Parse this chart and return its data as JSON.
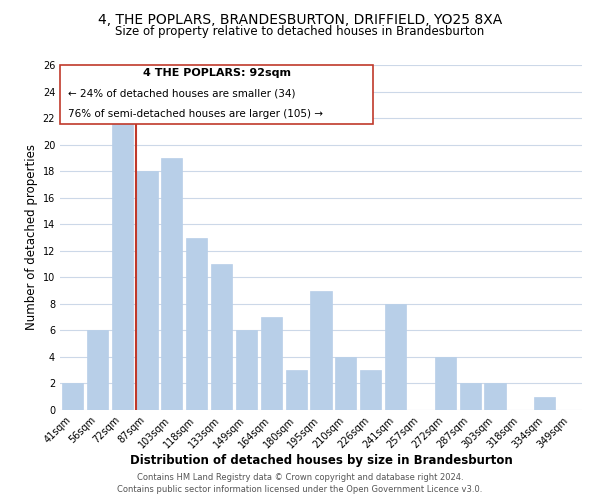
{
  "title": "4, THE POPLARS, BRANDESBURTON, DRIFFIELD, YO25 8XA",
  "subtitle": "Size of property relative to detached houses in Brandesburton",
  "xlabel": "Distribution of detached houses by size in Brandesburton",
  "ylabel": "Number of detached properties",
  "bin_labels": [
    "41sqm",
    "56sqm",
    "72sqm",
    "87sqm",
    "103sqm",
    "118sqm",
    "133sqm",
    "149sqm",
    "164sqm",
    "180sqm",
    "195sqm",
    "210sqm",
    "226sqm",
    "241sqm",
    "257sqm",
    "272sqm",
    "287sqm",
    "303sqm",
    "318sqm",
    "334sqm",
    "349sqm"
  ],
  "bar_values": [
    2,
    6,
    22,
    18,
    19,
    13,
    11,
    6,
    7,
    3,
    9,
    4,
    3,
    8,
    0,
    4,
    2,
    2,
    0,
    1,
    0
  ],
  "bar_color": "#b8cfe8",
  "highlight_bar_color": "#c0392b",
  "highlight_bar_index": 3,
  "ylim": [
    0,
    26
  ],
  "yticks": [
    0,
    2,
    4,
    6,
    8,
    10,
    12,
    14,
    16,
    18,
    20,
    22,
    24,
    26
  ],
  "annotation_line1": "4 THE POPLARS: 92sqm",
  "annotation_line2": "← 24% of detached houses are smaller (34)",
  "annotation_line3": "76% of semi-detached houses are larger (105) →",
  "footer_line1": "Contains HM Land Registry data © Crown copyright and database right 2024.",
  "footer_line2": "Contains public sector information licensed under the Open Government Licence v3.0.",
  "background_color": "#ffffff",
  "grid_color": "#ccd8e8",
  "title_fontsize": 10,
  "subtitle_fontsize": 8.5,
  "axis_label_fontsize": 8.5,
  "tick_fontsize": 7,
  "annotation_fontsize": 7.5,
  "footer_fontsize": 6
}
